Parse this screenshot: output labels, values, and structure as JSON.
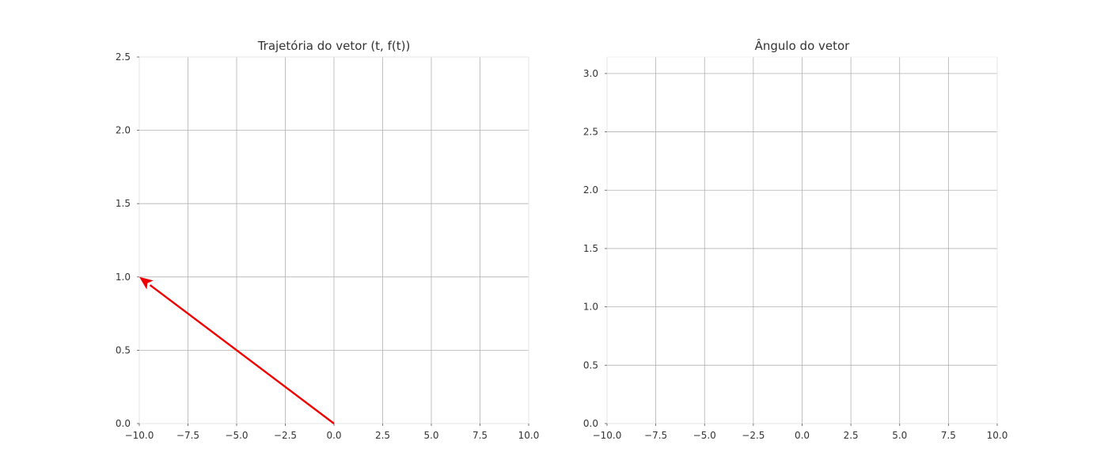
{
  "chart_data": [
    {
      "type": "line",
      "title": "Trajetória do vetor (t, f(t))",
      "xlabel": "",
      "ylabel": "",
      "xlim": [
        -10,
        10
      ],
      "ylim": [
        0,
        2.5
      ],
      "x_ticks": [
        -10,
        -7.5,
        -5,
        -2.5,
        0,
        2.5,
        5,
        7.5,
        10
      ],
      "x_tick_labels": [
        "−10.0",
        "−7.5",
        "−5.0",
        "−2.5",
        "0.0",
        "2.5",
        "5.0",
        "7.5",
        "10.0"
      ],
      "y_ticks": [
        0,
        0.5,
        1,
        1.5,
        2,
        2.5
      ],
      "y_tick_labels": [
        "0.0",
        "0.5",
        "1.0",
        "1.5",
        "2.0",
        "2.5"
      ],
      "grid": true,
      "series": [
        {
          "kind": "arrow",
          "color": "#ee0000",
          "x": [
            0,
            -10
          ],
          "y": [
            0,
            1
          ]
        }
      ]
    },
    {
      "type": "line",
      "title": "Ângulo do vetor",
      "xlabel": "",
      "ylabel": "",
      "xlim": [
        -10,
        10
      ],
      "ylim": [
        0,
        3.1416
      ],
      "x_ticks": [
        -10,
        -7.5,
        -5,
        -2.5,
        0,
        2.5,
        5,
        7.5,
        10
      ],
      "x_tick_labels": [
        "−10.0",
        "−7.5",
        "−5.0",
        "−2.5",
        "0.0",
        "2.5",
        "5.0",
        "7.5",
        "10.0"
      ],
      "y_ticks": [
        0,
        0.5,
        1,
        1.5,
        2,
        2.5,
        3
      ],
      "y_tick_labels": [
        "0.0",
        "0.5",
        "1.0",
        "1.5",
        "2.0",
        "2.5",
        "3.0"
      ],
      "grid": true,
      "series": []
    }
  ]
}
